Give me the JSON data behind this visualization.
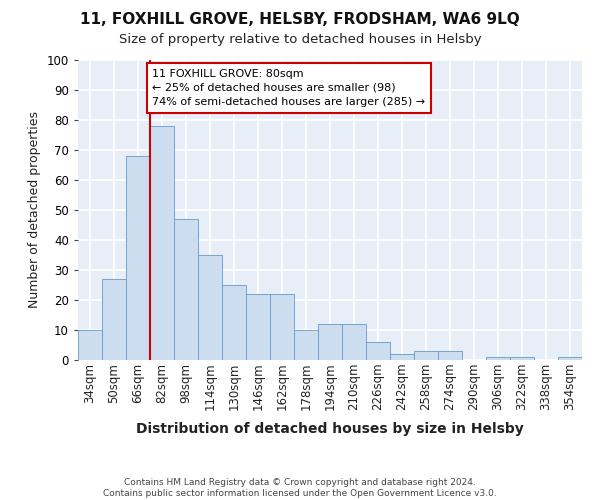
{
  "title": "11, FOXHILL GROVE, HELSBY, FRODSHAM, WA6 9LQ",
  "subtitle": "Size of property relative to detached houses in Helsby",
  "xlabel": "Distribution of detached houses by size in Helsby",
  "ylabel": "Number of detached properties",
  "categories": [
    "34sqm",
    "50sqm",
    "66sqm",
    "82sqm",
    "98sqm",
    "114sqm",
    "130sqm",
    "146sqm",
    "162sqm",
    "178sqm",
    "194sqm",
    "210sqm",
    "226sqm",
    "242sqm",
    "258sqm",
    "274sqm",
    "290sqm",
    "306sqm",
    "322sqm",
    "338sqm",
    "354sqm"
  ],
  "values": [
    10,
    27,
    68,
    78,
    47,
    35,
    25,
    22,
    22,
    10,
    12,
    12,
    6,
    2,
    3,
    3,
    0,
    1,
    1,
    0,
    1
  ],
  "bar_color": "#ccddf0",
  "bar_edge_color": "#6699cc",
  "highlight_line_color": "#cc0000",
  "annotation_text": "11 FOXHILL GROVE: 80sqm\n← 25% of detached houses are smaller (98)\n74% of semi-detached houses are larger (285) →",
  "annotation_box_color": "#ffffff",
  "annotation_box_edge": "#cc0000",
  "ylim": [
    0,
    100
  ],
  "background_color": "#e8eef8",
  "grid_color": "#ffffff",
  "footer": "Contains HM Land Registry data © Crown copyright and database right 2024.\nContains public sector information licensed under the Open Government Licence v3.0.",
  "title_fontsize": 11,
  "subtitle_fontsize": 9.5,
  "xlabel_fontsize": 10,
  "ylabel_fontsize": 9,
  "tick_fontsize": 8.5,
  "annotation_fontsize": 8,
  "footer_fontsize": 6.5
}
